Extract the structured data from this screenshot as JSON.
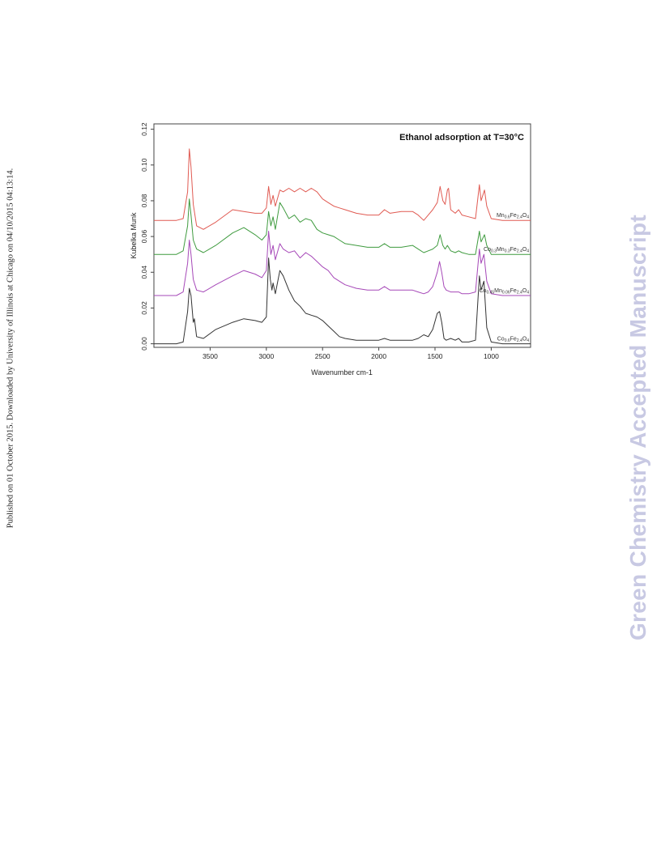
{
  "side_note": "Published on 01 October 2015. Downloaded by University of Illinois at Chicago on 04/10/2015 04:13:14.",
  "watermark": "Green Chemistry Accepted Manuscript",
  "chart_data": {
    "type": "line",
    "title": "Ethanol adsorption at T=30°C",
    "xlabel": "Wavenumber cm-1",
    "ylabel": "Kubelka Munk",
    "xlim": [
      4000,
      650
    ],
    "ylim": [
      -0.002,
      0.123
    ],
    "x_reversed": true,
    "x_ticks": [
      3500,
      3000,
      2500,
      2000,
      1500,
      1000
    ],
    "y_ticks": [
      0.0,
      0.02,
      0.04,
      0.06,
      0.08,
      0.1,
      0.12
    ],
    "y_tick_labels": [
      "0.00",
      "0.02",
      "0.04",
      "0.06",
      "0.08",
      "0.10",
      "0.12"
    ],
    "grid": false,
    "series": [
      {
        "name": "Mn0.6Fe2.4O4",
        "label_main": "Mn",
        "label_parts": [
          [
            "0.6",
            "Fe"
          ],
          [
            "2.4",
            "O"
          ],
          [
            "4",
            ""
          ]
        ],
        "color": "#e05a52",
        "points": [
          [
            4000,
            0.069
          ],
          [
            3800,
            0.069
          ],
          [
            3740,
            0.07
          ],
          [
            3700,
            0.085
          ],
          [
            3685,
            0.109
          ],
          [
            3670,
            0.099
          ],
          [
            3650,
            0.078
          ],
          [
            3620,
            0.066
          ],
          [
            3560,
            0.064
          ],
          [
            3450,
            0.068
          ],
          [
            3300,
            0.075
          ],
          [
            3200,
            0.074
          ],
          [
            3100,
            0.073
          ],
          [
            3040,
            0.073
          ],
          [
            3000,
            0.076
          ],
          [
            2980,
            0.088
          ],
          [
            2960,
            0.078
          ],
          [
            2940,
            0.083
          ],
          [
            2920,
            0.077
          ],
          [
            2880,
            0.086
          ],
          [
            2850,
            0.085
          ],
          [
            2800,
            0.087
          ],
          [
            2750,
            0.085
          ],
          [
            2700,
            0.087
          ],
          [
            2650,
            0.085
          ],
          [
            2600,
            0.087
          ],
          [
            2550,
            0.085
          ],
          [
            2500,
            0.081
          ],
          [
            2450,
            0.079
          ],
          [
            2400,
            0.077
          ],
          [
            2350,
            0.076
          ],
          [
            2300,
            0.075
          ],
          [
            2200,
            0.073
          ],
          [
            2100,
            0.072
          ],
          [
            2000,
            0.072
          ],
          [
            1950,
            0.075
          ],
          [
            1900,
            0.073
          ],
          [
            1800,
            0.074
          ],
          [
            1700,
            0.074
          ],
          [
            1650,
            0.072
          ],
          [
            1600,
            0.069
          ],
          [
            1560,
            0.072
          ],
          [
            1520,
            0.075
          ],
          [
            1480,
            0.079
          ],
          [
            1455,
            0.088
          ],
          [
            1430,
            0.08
          ],
          [
            1410,
            0.078
          ],
          [
            1390,
            0.086
          ],
          [
            1380,
            0.087
          ],
          [
            1360,
            0.075
          ],
          [
            1320,
            0.073
          ],
          [
            1290,
            0.075
          ],
          [
            1260,
            0.072
          ],
          [
            1200,
            0.071
          ],
          [
            1140,
            0.07
          ],
          [
            1105,
            0.089
          ],
          [
            1090,
            0.08
          ],
          [
            1060,
            0.086
          ],
          [
            1040,
            0.077
          ],
          [
            1000,
            0.07
          ],
          [
            900,
            0.069
          ],
          [
            650,
            0.069
          ]
        ]
      },
      {
        "name": "Co0.3Mn0.3Fe2.4O4",
        "label_main": "Co",
        "label_parts": [
          [
            "0.3",
            "Mn"
          ],
          [
            "0.3",
            "Fe"
          ],
          [
            "2.4",
            "O"
          ],
          [
            "4",
            ""
          ]
        ],
        "color": "#3f9b3f",
        "points": [
          [
            4000,
            0.05
          ],
          [
            3800,
            0.05
          ],
          [
            3740,
            0.052
          ],
          [
            3700,
            0.066
          ],
          [
            3685,
            0.081
          ],
          [
            3670,
            0.072
          ],
          [
            3650,
            0.058
          ],
          [
            3620,
            0.053
          ],
          [
            3560,
            0.051
          ],
          [
            3450,
            0.055
          ],
          [
            3300,
            0.062
          ],
          [
            3200,
            0.065
          ],
          [
            3100,
            0.061
          ],
          [
            3040,
            0.058
          ],
          [
            3000,
            0.061
          ],
          [
            2980,
            0.074
          ],
          [
            2960,
            0.066
          ],
          [
            2940,
            0.071
          ],
          [
            2920,
            0.064
          ],
          [
            2880,
            0.079
          ],
          [
            2850,
            0.076
          ],
          [
            2800,
            0.07
          ],
          [
            2750,
            0.072
          ],
          [
            2700,
            0.068
          ],
          [
            2650,
            0.07
          ],
          [
            2600,
            0.069
          ],
          [
            2550,
            0.064
          ],
          [
            2500,
            0.062
          ],
          [
            2450,
            0.061
          ],
          [
            2400,
            0.06
          ],
          [
            2350,
            0.058
          ],
          [
            2300,
            0.056
          ],
          [
            2200,
            0.055
          ],
          [
            2100,
            0.054
          ],
          [
            2000,
            0.054
          ],
          [
            1950,
            0.056
          ],
          [
            1900,
            0.054
          ],
          [
            1800,
            0.054
          ],
          [
            1700,
            0.055
          ],
          [
            1650,
            0.053
          ],
          [
            1600,
            0.051
          ],
          [
            1560,
            0.052
          ],
          [
            1520,
            0.053
          ],
          [
            1480,
            0.055
          ],
          [
            1455,
            0.061
          ],
          [
            1430,
            0.055
          ],
          [
            1410,
            0.053
          ],
          [
            1390,
            0.055
          ],
          [
            1380,
            0.054
          ],
          [
            1360,
            0.052
          ],
          [
            1320,
            0.051
          ],
          [
            1290,
            0.052
          ],
          [
            1260,
            0.051
          ],
          [
            1200,
            0.05
          ],
          [
            1140,
            0.05
          ],
          [
            1105,
            0.063
          ],
          [
            1090,
            0.057
          ],
          [
            1060,
            0.061
          ],
          [
            1040,
            0.055
          ],
          [
            1000,
            0.05
          ],
          [
            900,
            0.05
          ],
          [
            650,
            0.05
          ]
        ]
      },
      {
        "name": "Co0.45Mn0.06Fe2.4O4",
        "label_main": "Co",
        "label_parts": [
          [
            "0.45",
            "Mn"
          ],
          [
            "0.06",
            "Fe"
          ],
          [
            "2.4",
            "O"
          ],
          [
            "4",
            ""
          ]
        ],
        "color": "#a648b8",
        "points": [
          [
            4000,
            0.027
          ],
          [
            3800,
            0.027
          ],
          [
            3740,
            0.029
          ],
          [
            3700,
            0.045
          ],
          [
            3685,
            0.058
          ],
          [
            3670,
            0.05
          ],
          [
            3650,
            0.036
          ],
          [
            3620,
            0.03
          ],
          [
            3560,
            0.029
          ],
          [
            3450,
            0.033
          ],
          [
            3300,
            0.038
          ],
          [
            3200,
            0.041
          ],
          [
            3100,
            0.039
          ],
          [
            3040,
            0.037
          ],
          [
            3000,
            0.041
          ],
          [
            2980,
            0.063
          ],
          [
            2960,
            0.05
          ],
          [
            2940,
            0.055
          ],
          [
            2920,
            0.047
          ],
          [
            2880,
            0.056
          ],
          [
            2850,
            0.053
          ],
          [
            2800,
            0.051
          ],
          [
            2750,
            0.052
          ],
          [
            2700,
            0.048
          ],
          [
            2650,
            0.051
          ],
          [
            2600,
            0.049
          ],
          [
            2550,
            0.046
          ],
          [
            2500,
            0.043
          ],
          [
            2450,
            0.041
          ],
          [
            2400,
            0.037
          ],
          [
            2350,
            0.035
          ],
          [
            2300,
            0.033
          ],
          [
            2200,
            0.031
          ],
          [
            2100,
            0.03
          ],
          [
            2000,
            0.03
          ],
          [
            1950,
            0.032
          ],
          [
            1900,
            0.03
          ],
          [
            1800,
            0.03
          ],
          [
            1700,
            0.03
          ],
          [
            1650,
            0.029
          ],
          [
            1600,
            0.028
          ],
          [
            1560,
            0.029
          ],
          [
            1520,
            0.032
          ],
          [
            1480,
            0.04
          ],
          [
            1460,
            0.046
          ],
          [
            1440,
            0.04
          ],
          [
            1420,
            0.032
          ],
          [
            1400,
            0.03
          ],
          [
            1360,
            0.029
          ],
          [
            1320,
            0.029
          ],
          [
            1290,
            0.029
          ],
          [
            1260,
            0.028
          ],
          [
            1200,
            0.028
          ],
          [
            1140,
            0.029
          ],
          [
            1105,
            0.053
          ],
          [
            1090,
            0.045
          ],
          [
            1065,
            0.05
          ],
          [
            1040,
            0.035
          ],
          [
            1000,
            0.028
          ],
          [
            900,
            0.027
          ],
          [
            650,
            0.027
          ]
        ]
      },
      {
        "name": "Co0.6Fe2.4O4",
        "label_main": "Co",
        "label_parts": [
          [
            "0.6",
            "Fe"
          ],
          [
            "2.4",
            "O"
          ],
          [
            "4",
            ""
          ]
        ],
        "color": "#333333",
        "points": [
          [
            4000,
            0.0
          ],
          [
            3800,
            0.0
          ],
          [
            3740,
            0.001
          ],
          [
            3700,
            0.018
          ],
          [
            3685,
            0.031
          ],
          [
            3670,
            0.027
          ],
          [
            3650,
            0.012
          ],
          [
            3640,
            0.014
          ],
          [
            3620,
            0.004
          ],
          [
            3560,
            0.003
          ],
          [
            3450,
            0.008
          ],
          [
            3300,
            0.012
          ],
          [
            3200,
            0.014
          ],
          [
            3100,
            0.013
          ],
          [
            3040,
            0.012
          ],
          [
            3000,
            0.015
          ],
          [
            2980,
            0.048
          ],
          [
            2965,
            0.036
          ],
          [
            2950,
            0.03
          ],
          [
            2940,
            0.034
          ],
          [
            2920,
            0.028
          ],
          [
            2880,
            0.041
          ],
          [
            2850,
            0.038
          ],
          [
            2800,
            0.03
          ],
          [
            2750,
            0.024
          ],
          [
            2700,
            0.021
          ],
          [
            2650,
            0.017
          ],
          [
            2600,
            0.016
          ],
          [
            2550,
            0.015
          ],
          [
            2500,
            0.013
          ],
          [
            2450,
            0.01
          ],
          [
            2400,
            0.007
          ],
          [
            2350,
            0.004
          ],
          [
            2300,
            0.003
          ],
          [
            2200,
            0.002
          ],
          [
            2100,
            0.002
          ],
          [
            2000,
            0.002
          ],
          [
            1950,
            0.003
          ],
          [
            1900,
            0.002
          ],
          [
            1800,
            0.002
          ],
          [
            1700,
            0.002
          ],
          [
            1650,
            0.003
          ],
          [
            1600,
            0.005
          ],
          [
            1560,
            0.004
          ],
          [
            1520,
            0.008
          ],
          [
            1480,
            0.017
          ],
          [
            1460,
            0.018
          ],
          [
            1440,
            0.012
          ],
          [
            1420,
            0.003
          ],
          [
            1400,
            0.002
          ],
          [
            1360,
            0.003
          ],
          [
            1320,
            0.002
          ],
          [
            1290,
            0.003
          ],
          [
            1260,
            0.001
          ],
          [
            1200,
            0.001
          ],
          [
            1140,
            0.002
          ],
          [
            1105,
            0.038
          ],
          [
            1090,
            0.03
          ],
          [
            1065,
            0.035
          ],
          [
            1040,
            0.009
          ],
          [
            1000,
            0.001
          ],
          [
            900,
            0.0
          ],
          [
            650,
            0.0
          ]
        ]
      }
    ]
  }
}
